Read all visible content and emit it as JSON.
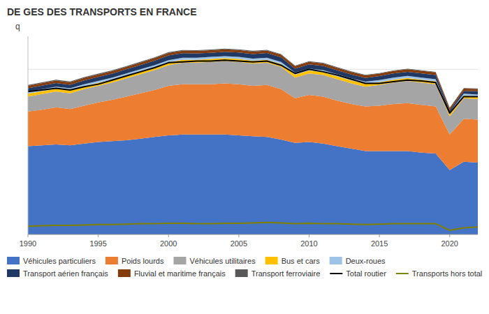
{
  "chart_data": {
    "type": "area",
    "stacked": true,
    "title": "DE GES DES TRANSPORTS EN FRANCE",
    "ylabel": "q",
    "x": [
      1990,
      1991,
      1992,
      1993,
      1994,
      1995,
      1996,
      1997,
      1998,
      1999,
      2000,
      2001,
      2002,
      2003,
      2004,
      2005,
      2006,
      2007,
      2008,
      2009,
      2010,
      2011,
      2012,
      2013,
      2014,
      2015,
      2016,
      2017,
      2018,
      2019,
      2020,
      2021,
      2022
    ],
    "series": [
      {
        "name": "Véhicules particuliers",
        "type": "area",
        "color": "#4472C4",
        "values": [
          107,
          108,
          109,
          108,
          110,
          112,
          113,
          114,
          116,
          118,
          120,
          121,
          121,
          121,
          121,
          120,
          119,
          118,
          115,
          111,
          112,
          110,
          107,
          104,
          101,
          101,
          101,
          101,
          99,
          98,
          78,
          88,
          87
        ]
      },
      {
        "name": "Poids lourds",
        "type": "area",
        "color": "#ED7D31",
        "values": [
          42,
          43,
          45,
          44,
          46,
          48,
          50,
          53,
          55,
          57,
          60,
          61,
          61,
          61,
          62,
          62,
          61,
          63,
          61,
          54,
          57,
          57,
          55,
          54,
          54,
          55,
          57,
          58,
          58,
          57,
          43,
          52,
          52
        ]
      },
      {
        "name": "Véhicules utilitaires",
        "type": "area",
        "color": "#A5A5A5",
        "values": [
          18,
          19,
          19,
          19,
          20,
          20,
          21,
          22,
          23,
          24,
          25,
          26,
          26,
          27,
          27,
          27,
          27,
          27,
          27,
          25,
          26,
          26,
          26,
          25,
          24,
          25,
          26,
          27,
          27,
          27,
          22,
          25,
          25
        ]
      },
      {
        "name": "Bus et cars",
        "type": "area",
        "color": "#FFC000",
        "values": [
          3.5,
          3.5,
          3.5,
          3.5,
          3.5,
          3.5,
          3.5,
          3.5,
          3.5,
          3.5,
          3.5,
          3.5,
          3.5,
          3.5,
          3.5,
          3.5,
          3.5,
          3.5,
          3.5,
          3.5,
          3.5,
          3.5,
          3.5,
          3.5,
          3.5,
          3.5,
          3.5,
          3.5,
          3.5,
          3.5,
          3.0,
          3.2,
          3.2
        ]
      },
      {
        "name": "Deux-roues",
        "type": "area",
        "color": "#9DC3E6",
        "values": [
          2.5,
          2.5,
          2.5,
          2.5,
          2.5,
          2.5,
          2.5,
          2.5,
          2.5,
          2.5,
          2.5,
          2.5,
          2.5,
          2.5,
          2.5,
          2.5,
          2.5,
          2.5,
          2.5,
          2.5,
          2.5,
          2.5,
          2.5,
          2.5,
          2.5,
          2.5,
          2.5,
          2.5,
          2.5,
          2.5,
          2.0,
          2.2,
          2.2
        ]
      },
      {
        "name": "Transport aérien français",
        "type": "area",
        "color": "#1F3864",
        "values": [
          4.0,
          4.2,
          4.4,
          4.3,
          4.5,
          4.7,
          4.8,
          5.0,
          5.2,
          5.5,
          5.8,
          5.5,
          5.2,
          5.0,
          5.2,
          5.3,
          5.5,
          5.7,
          5.6,
          4.8,
          4.9,
          5.0,
          4.8,
          4.7,
          4.6,
          4.8,
          4.9,
          5.0,
          5.1,
          5.2,
          2.5,
          3.5,
          4.0
        ]
      },
      {
        "name": "Fluvial et maritime français",
        "type": "area",
        "color": "#843C0C",
        "values": [
          3.0,
          3.0,
          3.0,
          3.0,
          3.0,
          3.0,
          3.0,
          3.0,
          3.0,
          3.0,
          3.0,
          3.0,
          3.0,
          3.0,
          3.0,
          3.0,
          3.0,
          3.0,
          3.0,
          3.0,
          3.0,
          3.0,
          3.0,
          3.0,
          3.0,
          3.0,
          3.0,
          3.0,
          3.0,
          3.0,
          2.5,
          2.8,
          2.8
        ]
      },
      {
        "name": "Transport ferroviaire",
        "type": "area",
        "color": "#595959",
        "values": [
          1.0,
          1.0,
          1.0,
          1.0,
          1.0,
          1.0,
          0.9,
          0.9,
          0.9,
          0.9,
          0.9,
          0.9,
          0.9,
          0.9,
          0.9,
          0.9,
          0.9,
          0.9,
          0.9,
          0.8,
          0.8,
          0.8,
          0.8,
          0.8,
          0.7,
          0.7,
          0.7,
          0.7,
          0.7,
          0.6,
          0.5,
          0.6,
          0.6
        ]
      },
      {
        "name": "Total routier",
        "type": "line",
        "color": "#000000",
        "values": [
          173,
          175,
          177,
          175,
          179,
          182,
          187,
          192,
          197,
          202,
          208,
          209,
          210,
          210,
          211,
          210,
          209,
          210,
          205,
          195,
          200,
          197,
          193,
          188,
          183,
          183,
          185,
          187,
          186,
          184,
          147,
          167,
          167
        ]
      },
      {
        "name": "Transports hors total",
        "type": "line",
        "color": "#808000",
        "values": [
          10,
          10.5,
          11,
          11,
          11.5,
          12,
          12,
          12.5,
          13,
          13,
          13.5,
          13.5,
          13,
          13,
          13.5,
          13.5,
          14,
          14.5,
          14,
          13,
          13.5,
          13,
          13,
          12.5,
          12,
          12.5,
          13,
          13,
          13,
          13,
          5,
          8,
          9
        ]
      }
    ],
    "xlim": [
      1990,
      2022
    ],
    "ylim": [
      0,
      240
    ],
    "xticks": [
      1990,
      1995,
      2000,
      2005,
      2010,
      2015,
      2020
    ],
    "yticks": [
      50,
      100,
      150,
      200
    ],
    "tick_labels": "x",
    "grid": true,
    "legend": "bottom"
  }
}
